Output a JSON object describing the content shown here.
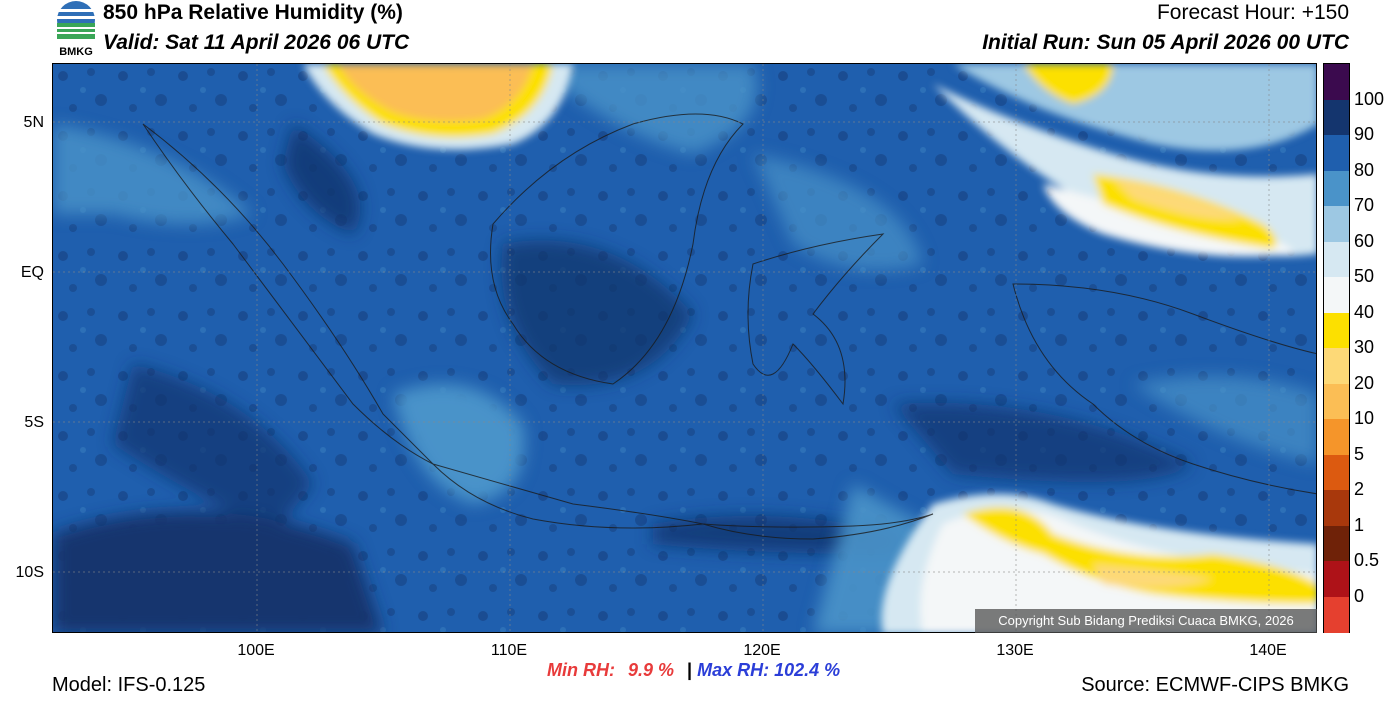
{
  "header": {
    "title": "850 hPa Relative Humidity (%)",
    "valid": "Valid: Sat 11 April 2026 06 UTC",
    "forecast_hour": "Forecast Hour: +150",
    "initial_run": "Initial Run: Sun 05 April 2026 00 UTC"
  },
  "logo": {
    "text": "BMKG"
  },
  "map": {
    "lat_labels": [
      "5N",
      "EQ",
      "5S",
      "10S"
    ],
    "lon_labels": [
      "100E",
      "110E",
      "120E",
      "130E",
      "140E"
    ],
    "copyright": "Copyright Sub Bidang Prediksi Cuaca BMKG, 2026"
  },
  "colorbar": {
    "labels": [
      "100",
      "90",
      "80",
      "70",
      "60",
      "50",
      "40",
      "30",
      "20",
      "10",
      "5",
      "2",
      "1",
      "0.5",
      "0"
    ],
    "colors": [
      "#3b0a4e",
      "#14356e",
      "#1f5fae",
      "#4a93c9",
      "#9dc8e3",
      "#d6e8f2",
      "#f4f7f8",
      "#fce000",
      "#fdd977",
      "#fbbe55",
      "#f5952a",
      "#dc5a10",
      "#a8380c",
      "#6f2208",
      "#ae1218",
      "#e5402f"
    ]
  },
  "stats": {
    "min_label": "Min RH:",
    "min_value": "9.9 %",
    "separator": "|",
    "max_label": "Max RH: 102.4 %"
  },
  "footer": {
    "model": "Model: IFS-0.125",
    "source": "Source: ECMWF-CIPS BMKG"
  }
}
